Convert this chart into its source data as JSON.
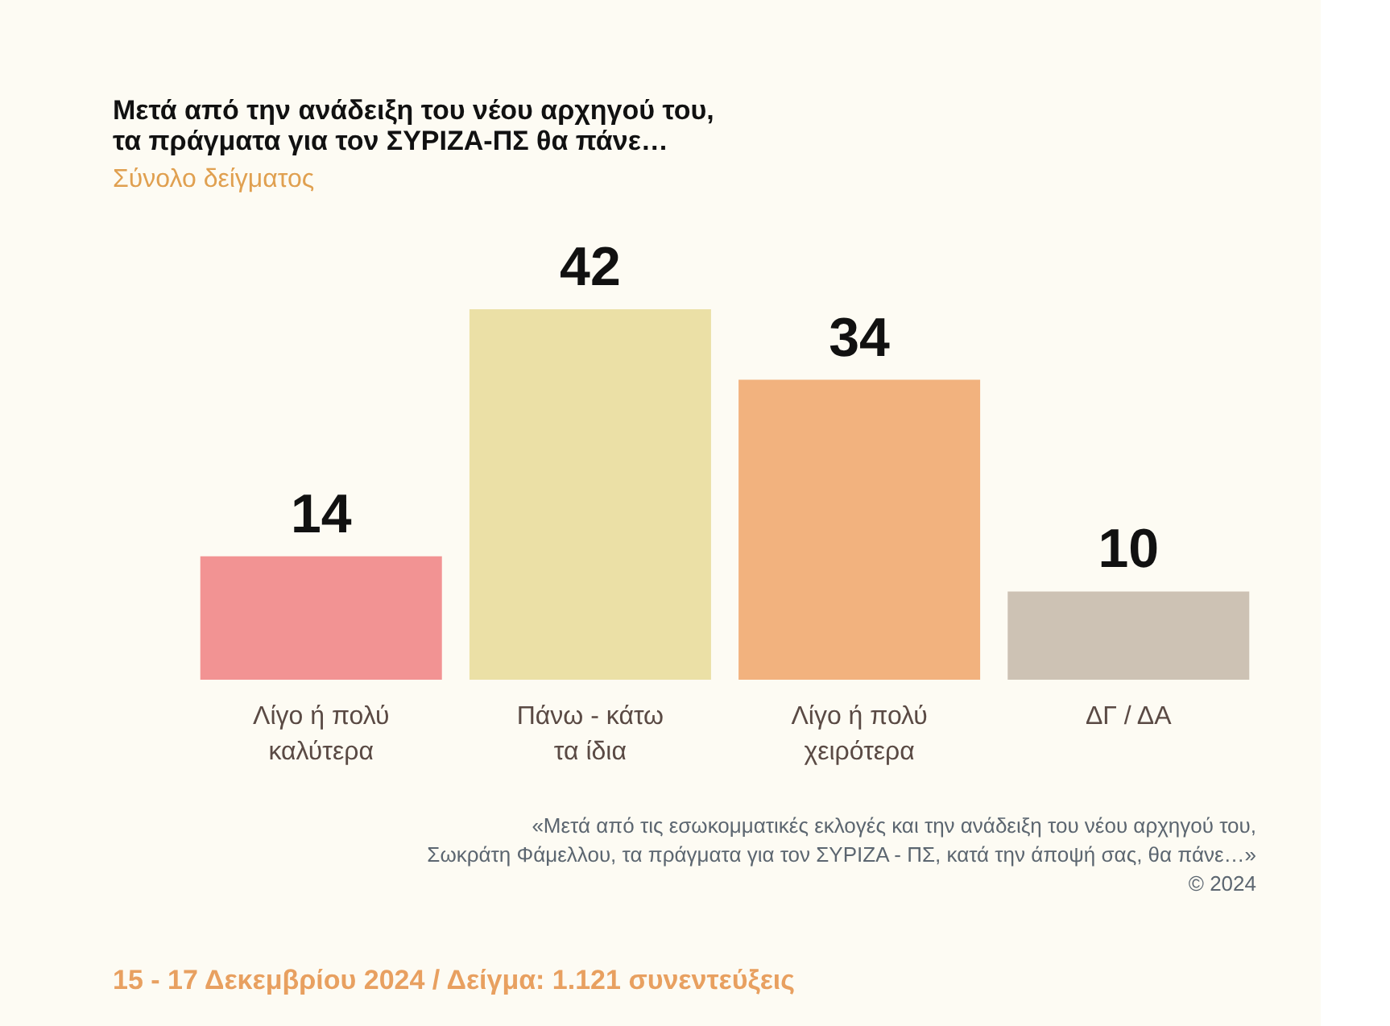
{
  "chart_data": {
    "type": "bar",
    "title": [
      "Μετά από την ανάδειξη του νέου αρχηγού του,",
      "τα πράγματα για τον ΣΥΡΙΖΑ-ΠΣ θα πάνε…"
    ],
    "subtitle": "Σύνολο δείγματος",
    "categories": [
      "Λίγο ή πολύ\nκαλύτερα",
      "Πάνω - κάτω\nτα ίδια",
      "Λίγο ή πολύ\nχειρότερα",
      "ΔΓ / ΔΑ"
    ],
    "values": [
      14,
      42,
      34,
      10
    ],
    "colors": [
      "#f29393",
      "#ebe0a6",
      "#f2b27e",
      "#cdc2b4"
    ],
    "tick_labels": "x",
    "data_labels": true,
    "grid": false,
    "annotations": [
      "«Μετά από τις εσωκομματικές εκλογές και την ανάδειξη του νέου αρχηγού του,",
      "Σωκράτη Φάμελλου, τα πράγματα για τον ΣΥΡΙΖΑ - ΠΣ, κατά την άποψή σας, θα πάνε…»",
      "©  2024",
      "15 - 17 Δεκεμβρίου 2024  /  Δείγμα:  1.121 συνεντεύξεις"
    ]
  }
}
